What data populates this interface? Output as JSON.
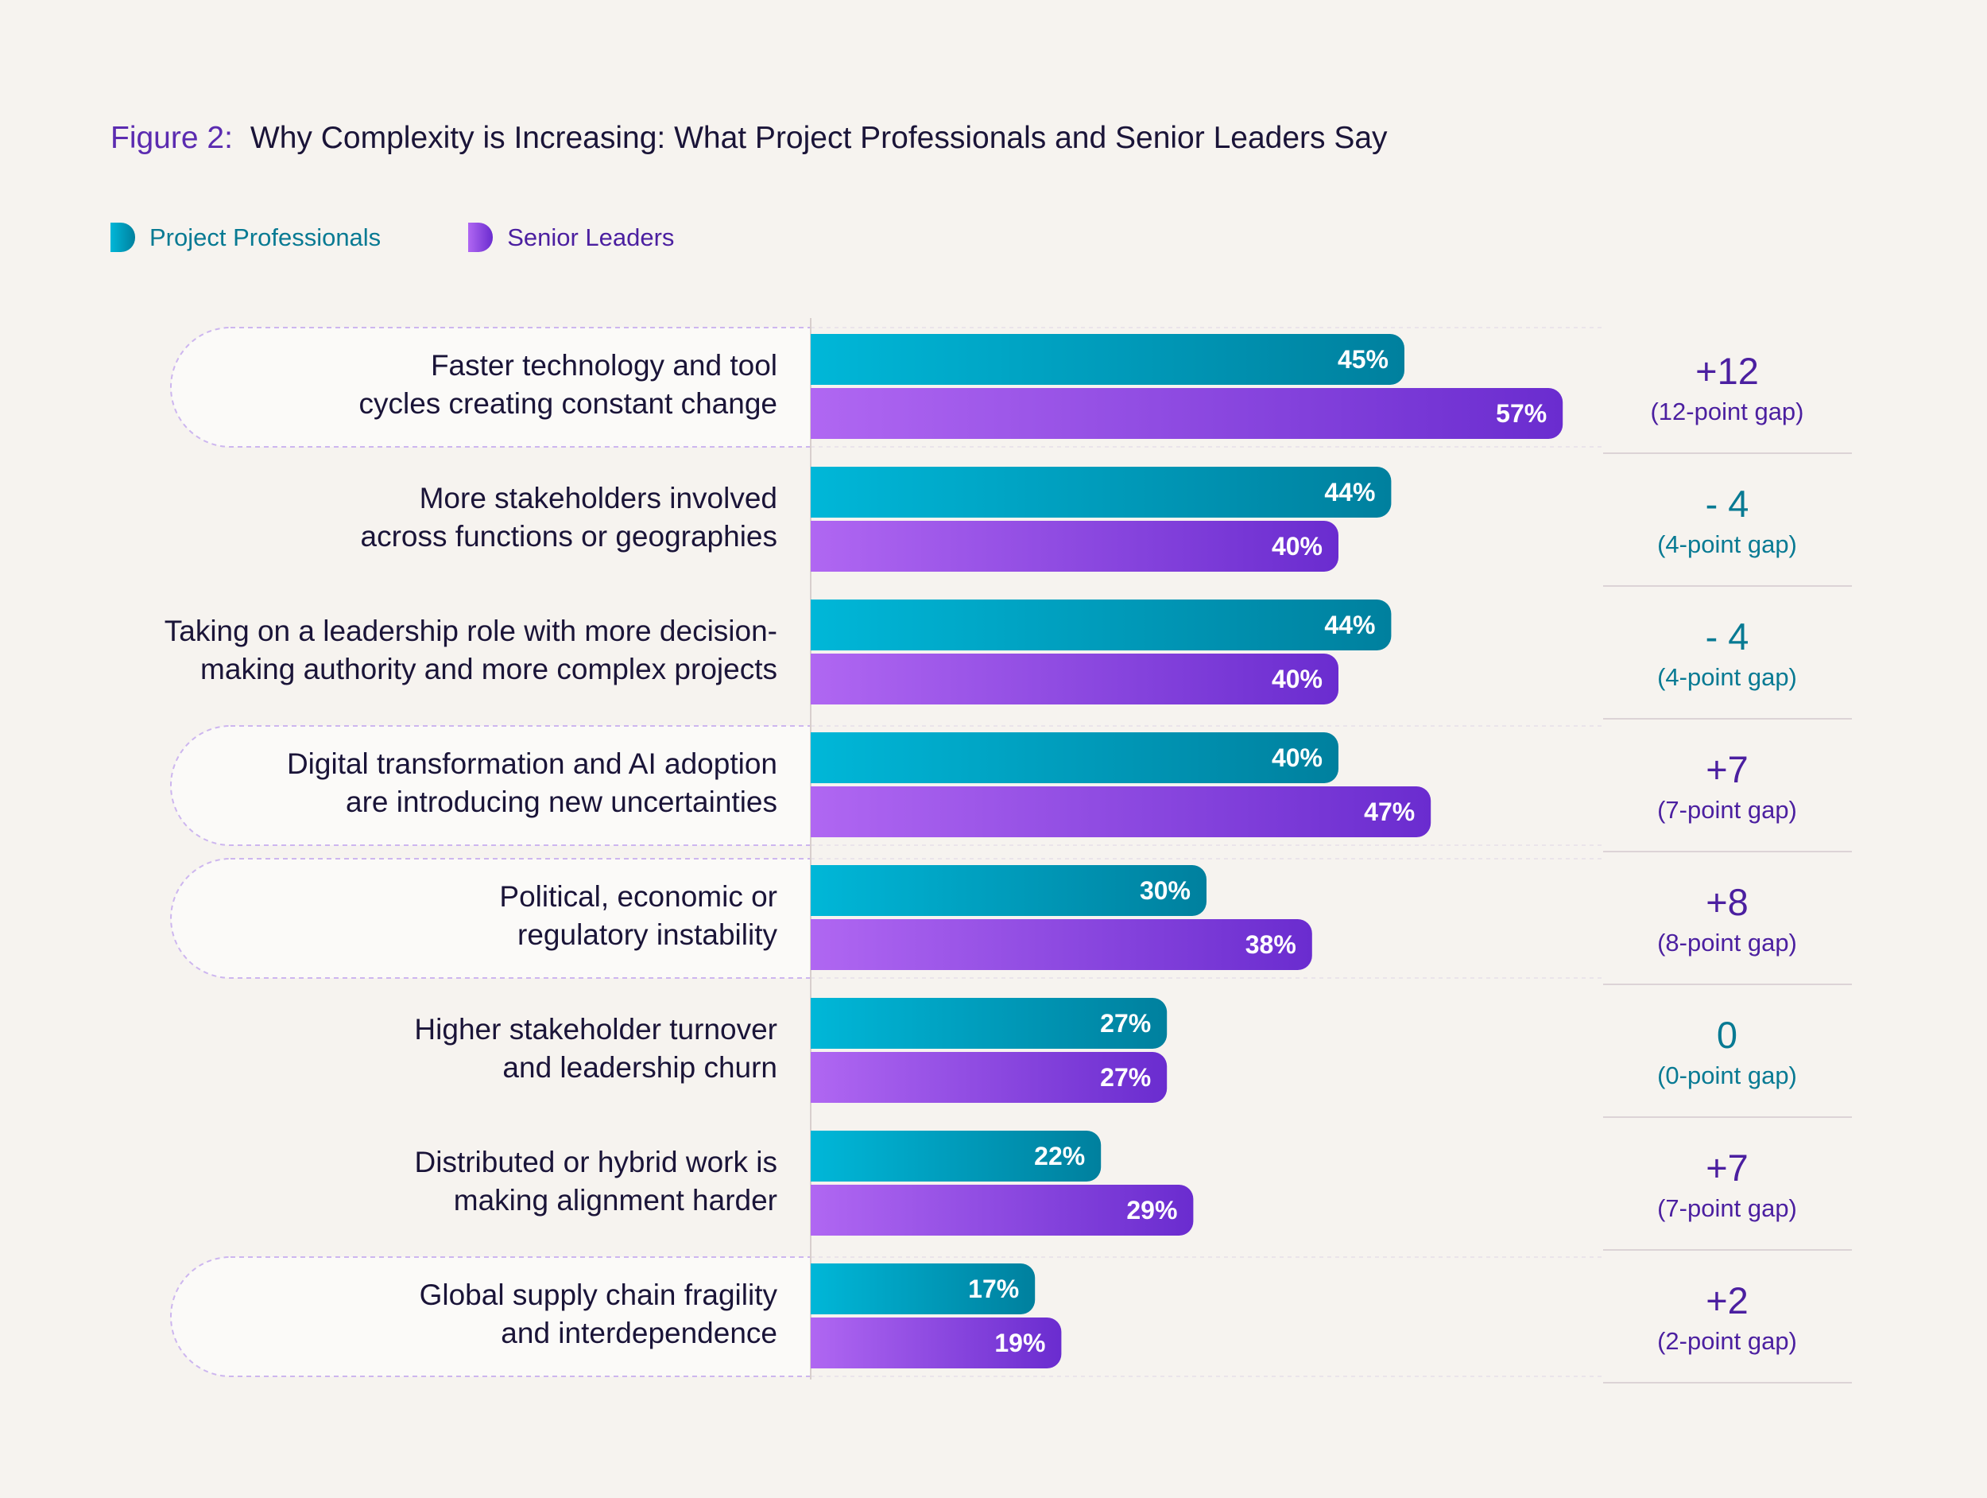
{
  "figure_label": "Figure 2:",
  "title": "Why Complexity is Increasing: What Project Professionals and Senior Leaders Say",
  "legend": {
    "project_professionals": "Project Professionals",
    "senior_leaders": "Senior Leaders"
  },
  "colors": {
    "pp_start": "#00b7d8",
    "pp_end": "#00809e",
    "sl_start": "#b067f2",
    "sl_end": "#6a2ccf",
    "positive_gap": "#4b1fa0",
    "nonpositive_gap": "#087a93",
    "highlight_outline": "#cdb6ef"
  },
  "chart_data": {
    "type": "bar",
    "orientation": "horizontal",
    "value_suffix": "%",
    "categories": [
      [
        "Faster technology and tool",
        "cycles creating constant change"
      ],
      [
        "More stakeholders involved",
        "across functions or geographies"
      ],
      [
        "Taking on a leadership role with more decision-",
        "making authority and more complex projects"
      ],
      [
        "Digital transformation and AI adoption",
        "are introducing new uncertainties"
      ],
      [
        "Political, economic or",
        "regulatory instability"
      ],
      [
        "Higher stakeholder turnover",
        "and leadership churn"
      ],
      [
        "Distributed or hybrid work is",
        "making alignment harder"
      ],
      [
        "Global supply chain fragility",
        "and interdependence"
      ]
    ],
    "highlighted_categories": [
      0,
      3,
      4,
      7
    ],
    "series": [
      {
        "name": "Project Professionals",
        "values": [
          45,
          44,
          44,
          40,
          30,
          27,
          22,
          17
        ]
      },
      {
        "name": "Senior Leaders",
        "values": [
          57,
          40,
          40,
          47,
          38,
          27,
          29,
          19
        ]
      }
    ],
    "gaps": [
      {
        "value": "+12",
        "note": "(12-point gap)"
      },
      {
        "value": "- 4",
        "note": "(4-point gap)"
      },
      {
        "value": "- 4",
        "note": "(4-point gap)"
      },
      {
        "value": "+7",
        "note": "(7-point gap)"
      },
      {
        "value": "+8",
        "note": "(8-point gap)"
      },
      {
        "value": "0",
        "note": "(0-point gap)"
      },
      {
        "value": "+7",
        "note": "(7-point gap)"
      },
      {
        "value": "+2",
        "note": "(2-point gap)"
      }
    ]
  }
}
